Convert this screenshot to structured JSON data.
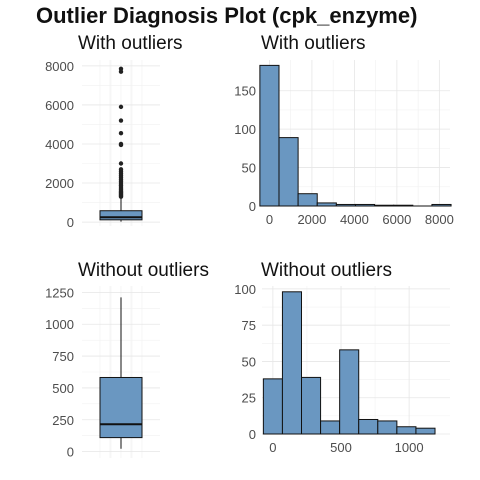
{
  "title": "Outlier Diagnosis Plot (cpk_enzyme)",
  "colors": {
    "fill": "#6a97c1",
    "stroke": "#111111",
    "point": "#222222",
    "grid": "#e6e6e6"
  },
  "chart_data": [
    {
      "type": "boxplot",
      "panel": "top-left",
      "title": "With outliers",
      "ylim": [
        -200,
        8300
      ],
      "yticks": [
        0,
        2000,
        4000,
        6000,
        8000
      ],
      "box": {
        "min": 23,
        "q1": 116,
        "median": 250,
        "q3": 582,
        "max": 1280
      },
      "outliers": [
        1300,
        1350,
        1400,
        1450,
        1500,
        1550,
        1600,
        1680,
        1750,
        1850,
        1900,
        2000,
        2100,
        2200,
        2300,
        2400,
        2500,
        2600,
        2700,
        3000,
        3950,
        4000,
        4550,
        5200,
        5900,
        7700,
        7850
      ]
    },
    {
      "type": "histogram",
      "panel": "top-right",
      "title": "With outliers",
      "xlim": [
        -350,
        8500
      ],
      "ylim": [
        0,
        190
      ],
      "xticks": [
        0,
        2000,
        4000,
        6000,
        8000
      ],
      "yticks": [
        0,
        50,
        100,
        150
      ],
      "bins": [
        {
          "x0": -450,
          "x1": 450,
          "count": 183
        },
        {
          "x0": 450,
          "x1": 1350,
          "count": 89
        },
        {
          "x0": 1350,
          "x1": 2250,
          "count": 16
        },
        {
          "x0": 2250,
          "x1": 3150,
          "count": 4
        },
        {
          "x0": 3150,
          "x1": 4050,
          "count": 2
        },
        {
          "x0": 4050,
          "x1": 4950,
          "count": 2
        },
        {
          "x0": 4950,
          "x1": 5850,
          "count": 1
        },
        {
          "x0": 5850,
          "x1": 6750,
          "count": 1
        },
        {
          "x0": 6750,
          "x1": 7650,
          "count": 0
        },
        {
          "x0": 7650,
          "x1": 8550,
          "count": 2
        }
      ]
    },
    {
      "type": "boxplot",
      "panel": "bottom-left",
      "title": "Without outliers",
      "ylim": [
        -50,
        1300
      ],
      "yticks": [
        0,
        250,
        500,
        750,
        1000,
        1250
      ],
      "box": {
        "min": 23,
        "q1": 110,
        "median": 215,
        "q3": 582,
        "max": 1211
      },
      "outliers": []
    },
    {
      "type": "histogram",
      "panel": "bottom-right",
      "title": "Without outliers",
      "xlim": [
        -80,
        1300
      ],
      "ylim": [
        0,
        102
      ],
      "xticks": [
        0,
        500,
        1000
      ],
      "yticks": [
        0,
        25,
        50,
        75,
        100
      ],
      "bins": [
        {
          "x0": -70,
          "x1": 70,
          "count": 38
        },
        {
          "x0": 70,
          "x1": 210,
          "count": 98
        },
        {
          "x0": 210,
          "x1": 350,
          "count": 39
        },
        {
          "x0": 350,
          "x1": 490,
          "count": 9
        },
        {
          "x0": 490,
          "x1": 630,
          "count": 58
        },
        {
          "x0": 630,
          "x1": 770,
          "count": 10
        },
        {
          "x0": 770,
          "x1": 910,
          "count": 9
        },
        {
          "x0": 910,
          "x1": 1050,
          "count": 5
        },
        {
          "x0": 1050,
          "x1": 1190,
          "count": 4
        }
      ]
    }
  ]
}
